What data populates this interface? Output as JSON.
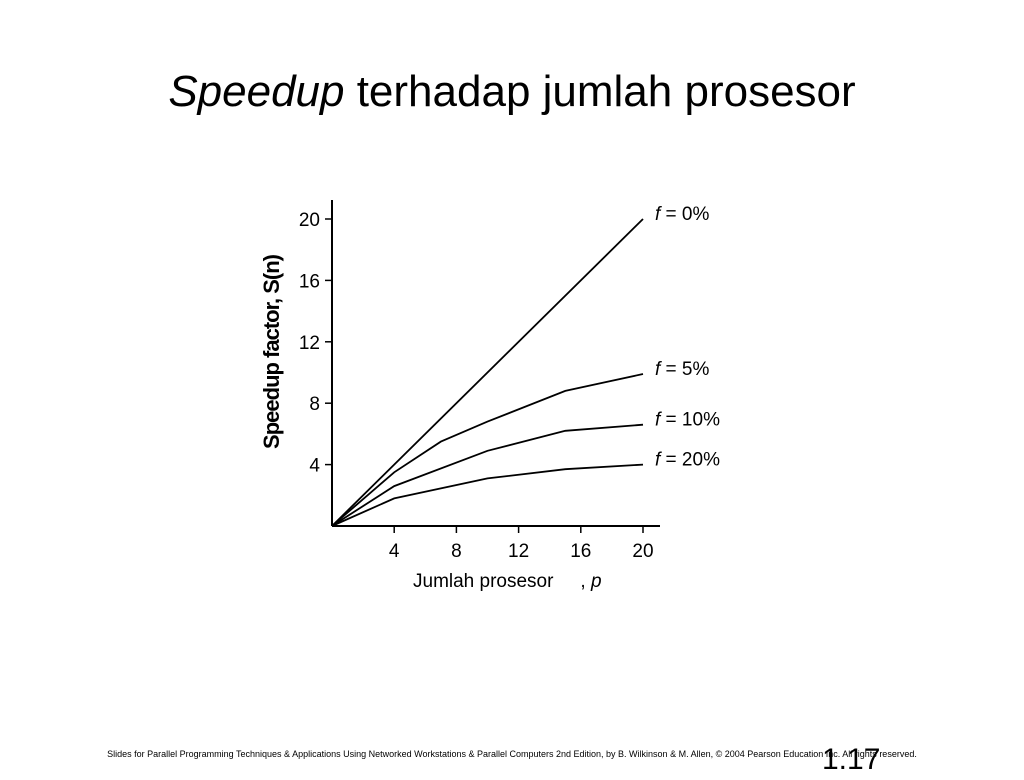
{
  "slide": {
    "title_italic": "Speedup",
    "title_rest": " terhadap jumlah prosesor",
    "footer": "Slides for Parallel Programming Techniques & Applications Using Networked Workstations & Parallel Computers 2nd Edition, by B. Wilkinson & M. Allen, © 2004 Pearson Education Inc. All rights reserved.",
    "page_number": "1.17"
  },
  "chart_data": {
    "type": "line",
    "ylabel": "Speedup factor, S(n)",
    "xlabel": "Jumlah prosesor",
    "xlabel_suffix": ", ",
    "xlabel_var": "p",
    "xlim": [
      0,
      20
    ],
    "ylim": [
      0,
      20
    ],
    "xticks": [
      4,
      8,
      12,
      16,
      20
    ],
    "yticks": [
      4,
      8,
      12,
      16,
      20
    ],
    "grid": false,
    "series": [
      {
        "name": "f = 0%",
        "label_var": "f",
        "label_rest": " = 0%",
        "points": [
          [
            0,
            0
          ],
          [
            20,
            20
          ]
        ]
      },
      {
        "name": "f = 5%",
        "label_var": "f",
        "label_rest": " = 5%",
        "points": [
          [
            0,
            0
          ],
          [
            4,
            3.5
          ],
          [
            7,
            5.5
          ],
          [
            10,
            6.8
          ],
          [
            15,
            8.8
          ],
          [
            20,
            9.9
          ]
        ]
      },
      {
        "name": "f = 10%",
        "label_var": "f",
        "label_rest": " = 10%",
        "points": [
          [
            0,
            0
          ],
          [
            4,
            2.6
          ],
          [
            10,
            4.9
          ],
          [
            15,
            6.2
          ],
          [
            20,
            6.6
          ]
        ]
      },
      {
        "name": "f = 20%",
        "label_var": "f",
        "label_rest": " = 20%",
        "points": [
          [
            0,
            0
          ],
          [
            4,
            1.8
          ],
          [
            10,
            3.1
          ],
          [
            15,
            3.7
          ],
          [
            20,
            4.0
          ]
        ]
      }
    ]
  }
}
